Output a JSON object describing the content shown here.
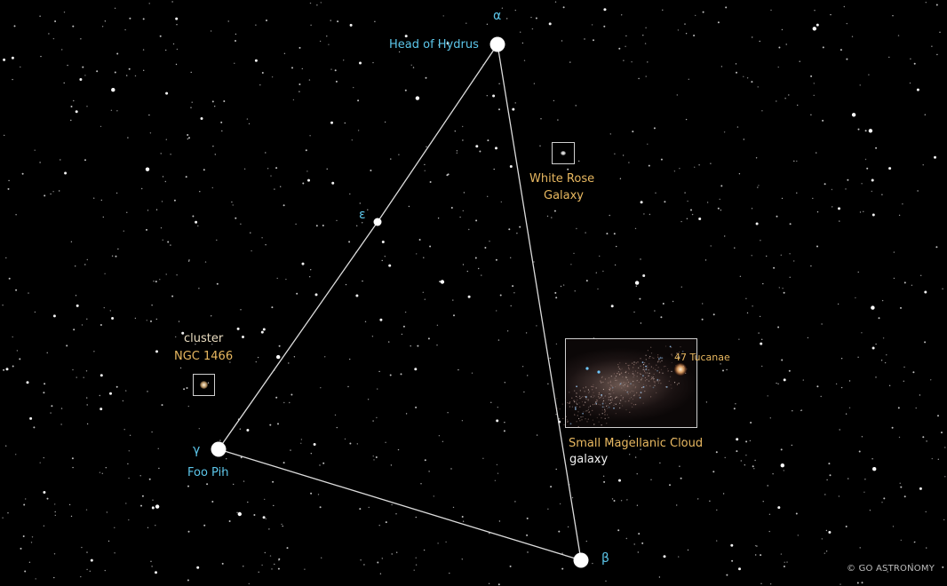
{
  "stars": [
    {
      "greek": "α",
      "name": "Head of Hydrus"
    },
    {
      "greek": "ε",
      "name": ""
    },
    {
      "greek": "γ",
      "name": "Foo Pih"
    },
    {
      "greek": "β",
      "name": ""
    }
  ],
  "deep_sky": {
    "white_rose": {
      "line1": "White Rose",
      "line2": "Galaxy"
    },
    "ngc1466": {
      "line1": "cluster",
      "line2": "NGC 1466"
    },
    "smc": {
      "line1": "Small Magellanic Cloud",
      "line2": "galaxy",
      "inset_label": "47 Tucanae"
    }
  },
  "credit": "© GO ASTRONOMY",
  "colors": {
    "star_label": "#5cc6ea",
    "object_label": "#e8b860",
    "lines": "#dcdcdc",
    "background": "#000000"
  }
}
